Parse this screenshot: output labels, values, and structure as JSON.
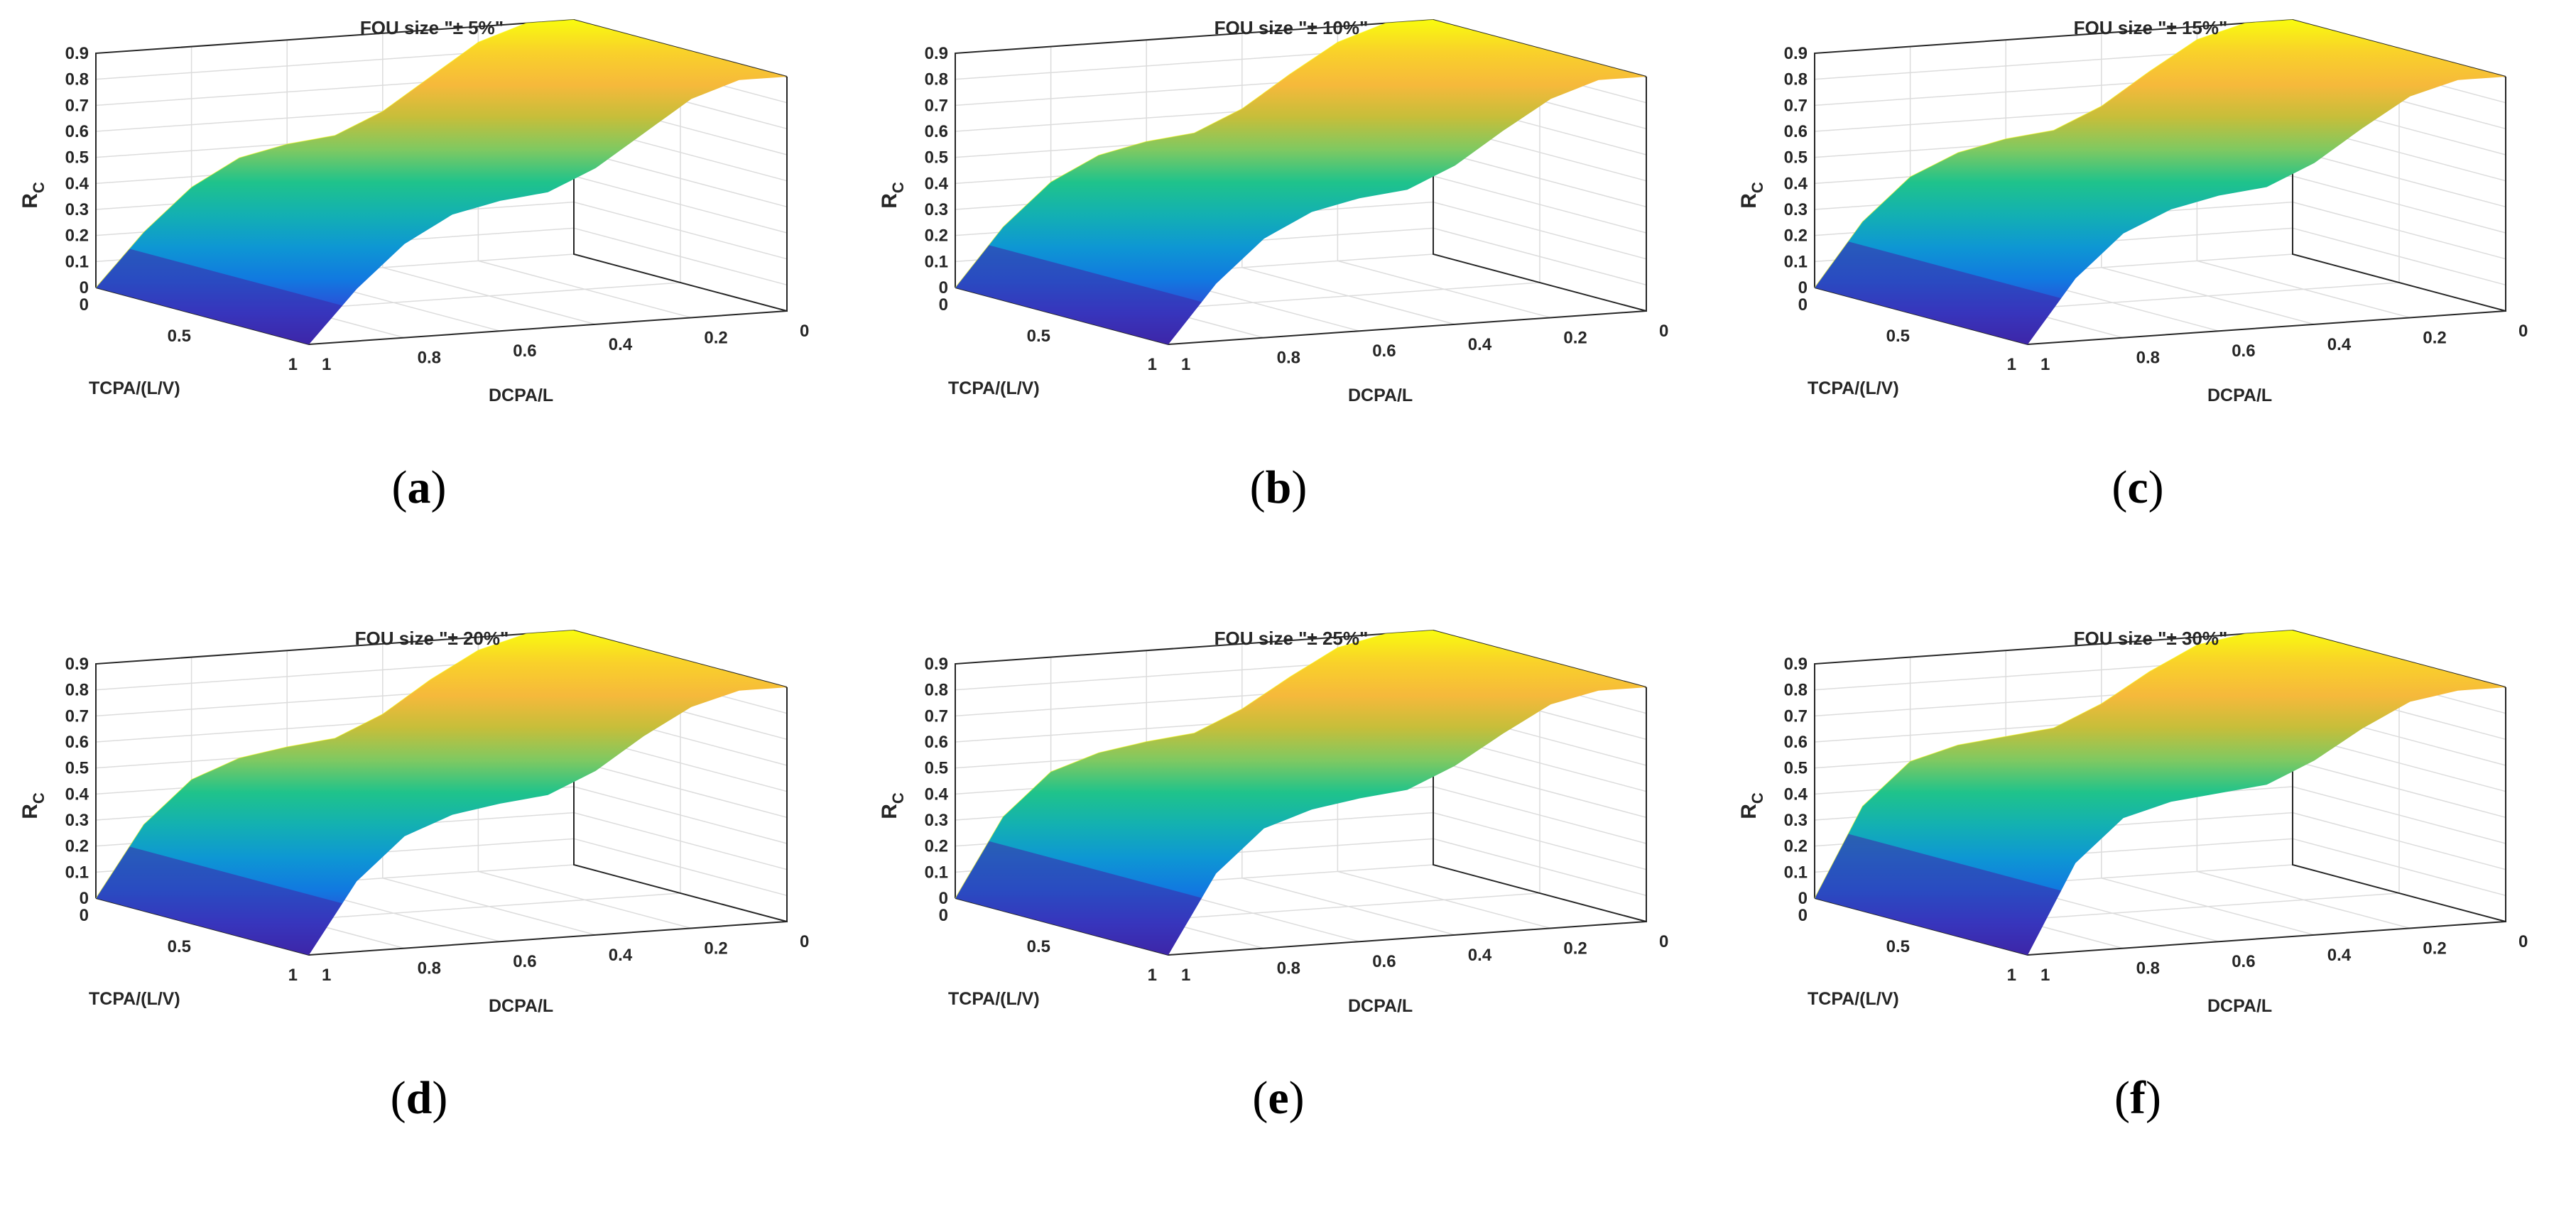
{
  "figure": {
    "description_label": "Six 3D surface panels of R_C versus TCPA/(L/V) and DCPA/L for different FOU sizes"
  },
  "colormap": {
    "name": "parula",
    "stops": [
      "#3e26a8",
      "#2f49d7",
      "#1179e0",
      "#0e97d3",
      "#13b0b2",
      "#1fc38b",
      "#7fc961",
      "#c6be3a",
      "#f6b93b",
      "#f9d12a",
      "#f9fb0e"
    ]
  },
  "chart_data": [
    {
      "type": "surface",
      "panel_caption": {
        "open": "(",
        "letter": "a",
        "close": ")"
      },
      "title": "FOU size \"± 5%\"",
      "zlabel": "R",
      "zlabel_sub": "C",
      "xlabel": "TCPA/(L/V)",
      "ylabel": "DCPA/L",
      "x_ticks": [
        "0.5",
        "1"
      ],
      "x_range": [
        0,
        1
      ],
      "y_ticks": [
        "1",
        "0.8",
        "0.6",
        "0.4",
        "0.2",
        "0"
      ],
      "y_range": [
        0,
        1
      ],
      "z_ticks": [
        "0",
        "0.1",
        "0.2",
        "0.3",
        "0.4",
        "0.5",
        "0.6",
        "0.7",
        "0.8",
        "0.9"
      ],
      "z_range": [
        0,
        0.9
      ],
      "profile_dcpa": [
        1,
        0.9,
        0.8,
        0.7,
        0.6,
        0.5,
        0.4,
        0.3,
        0.2,
        0.1,
        0
      ],
      "profile_rc": [
        0.0,
        0.2,
        0.36,
        0.46,
        0.5,
        0.52,
        0.6,
        0.72,
        0.84,
        0.9,
        0.9
      ]
    },
    {
      "type": "surface",
      "panel_caption": {
        "open": "(",
        "letter": "b",
        "close": ")"
      },
      "title": "FOU size \"± 10%\"",
      "zlabel": "R",
      "zlabel_sub": "C",
      "xlabel": "TCPA/(L/V)",
      "ylabel": "DCPA/L",
      "x_ticks": [
        "0.5",
        "1"
      ],
      "x_range": [
        0,
        1
      ],
      "y_ticks": [
        "1",
        "0.8",
        "0.6",
        "0.4",
        "0.2",
        "0"
      ],
      "y_range": [
        0,
        1
      ],
      "z_ticks": [
        "0",
        "0.1",
        "0.2",
        "0.3",
        "0.4",
        "0.5",
        "0.6",
        "0.7",
        "0.8",
        "0.9"
      ],
      "z_range": [
        0,
        0.9
      ],
      "profile_dcpa": [
        1,
        0.9,
        0.8,
        0.7,
        0.6,
        0.5,
        0.4,
        0.3,
        0.2,
        0.1,
        0
      ],
      "profile_rc": [
        0.0,
        0.22,
        0.38,
        0.47,
        0.51,
        0.53,
        0.61,
        0.73,
        0.84,
        0.9,
        0.9
      ]
    },
    {
      "type": "surface",
      "panel_caption": {
        "open": "(",
        "letter": "c",
        "close": ")"
      },
      "title": "FOU size \"± 15%\"",
      "zlabel": "R",
      "zlabel_sub": "C",
      "xlabel": "TCPA/(L/V)",
      "ylabel": "DCPA/L",
      "x_ticks": [
        "0.5",
        "1"
      ],
      "x_range": [
        0,
        1
      ],
      "y_ticks": [
        "1",
        "0.8",
        "0.6",
        "0.4",
        "0.2",
        "0"
      ],
      "y_range": [
        0,
        1
      ],
      "z_ticks": [
        "0",
        "0.1",
        "0.2",
        "0.3",
        "0.4",
        "0.5",
        "0.6",
        "0.7",
        "0.8",
        "0.9"
      ],
      "z_range": [
        0,
        0.9
      ],
      "profile_dcpa": [
        1,
        0.9,
        0.8,
        0.7,
        0.6,
        0.5,
        0.4,
        0.3,
        0.2,
        0.1,
        0
      ],
      "profile_rc": [
        0.0,
        0.24,
        0.4,
        0.48,
        0.52,
        0.54,
        0.62,
        0.74,
        0.85,
        0.9,
        0.9
      ]
    },
    {
      "type": "surface",
      "panel_caption": {
        "open": "(",
        "letter": "d",
        "close": ")"
      },
      "title": "FOU size \"± 20%\"",
      "zlabel": "R",
      "zlabel_sub": "C",
      "xlabel": "TCPA/(L/V)",
      "ylabel": "DCPA/L",
      "x_ticks": [
        "0.5",
        "1"
      ],
      "x_range": [
        0,
        1
      ],
      "y_ticks": [
        "1",
        "0.8",
        "0.6",
        "0.4",
        "0.2",
        "0"
      ],
      "y_range": [
        0,
        1
      ],
      "z_ticks": [
        "0",
        "0.1",
        "0.2",
        "0.3",
        "0.4",
        "0.5",
        "0.6",
        "0.7",
        "0.8",
        "0.9"
      ],
      "z_range": [
        0,
        0.9
      ],
      "profile_dcpa": [
        1,
        0.9,
        0.8,
        0.7,
        0.6,
        0.5,
        0.4,
        0.3,
        0.2,
        0.1,
        0
      ],
      "profile_rc": [
        0.0,
        0.27,
        0.43,
        0.5,
        0.53,
        0.55,
        0.63,
        0.75,
        0.85,
        0.9,
        0.9
      ]
    },
    {
      "type": "surface",
      "panel_caption": {
        "open": "(",
        "letter": "e",
        "close": ")"
      },
      "title": "FOU size \"± 25%\"",
      "zlabel": "R",
      "zlabel_sub": "C",
      "xlabel": "TCPA/(L/V)",
      "ylabel": "DCPA/L",
      "x_ticks": [
        "0.5",
        "1"
      ],
      "x_range": [
        0,
        1
      ],
      "y_ticks": [
        "1",
        "0.8",
        "0.6",
        "0.4",
        "0.2",
        "0"
      ],
      "y_range": [
        0,
        1
      ],
      "z_ticks": [
        "0",
        "0.1",
        "0.2",
        "0.3",
        "0.4",
        "0.5",
        "0.6",
        "0.7",
        "0.8",
        "0.9"
      ],
      "z_range": [
        0,
        0.9
      ],
      "profile_dcpa": [
        1,
        0.9,
        0.8,
        0.7,
        0.6,
        0.5,
        0.4,
        0.3,
        0.2,
        0.1,
        0
      ],
      "profile_rc": [
        0.0,
        0.3,
        0.46,
        0.52,
        0.55,
        0.57,
        0.65,
        0.76,
        0.86,
        0.9,
        0.9
      ]
    },
    {
      "type": "surface",
      "panel_caption": {
        "open": "(",
        "letter": "f",
        "close": ")"
      },
      "title": "FOU size \"± 30%\"",
      "zlabel": "R",
      "zlabel_sub": "C",
      "xlabel": "TCPA/(L/V)",
      "ylabel": "DCPA/L",
      "x_ticks": [
        "0.5",
        "1"
      ],
      "x_range": [
        0,
        1
      ],
      "y_ticks": [
        "1",
        "0.8",
        "0.6",
        "0.4",
        "0.2",
        "0"
      ],
      "y_range": [
        0,
        1
      ],
      "z_ticks": [
        "0",
        "0.1",
        "0.2",
        "0.3",
        "0.4",
        "0.5",
        "0.6",
        "0.7",
        "0.8",
        "0.9"
      ],
      "z_range": [
        0,
        0.9
      ],
      "profile_dcpa": [
        1,
        0.9,
        0.8,
        0.7,
        0.6,
        0.5,
        0.4,
        0.3,
        0.2,
        0.1,
        0
      ],
      "profile_rc": [
        0.0,
        0.34,
        0.5,
        0.55,
        0.57,
        0.59,
        0.67,
        0.78,
        0.87,
        0.9,
        0.9
      ]
    }
  ]
}
